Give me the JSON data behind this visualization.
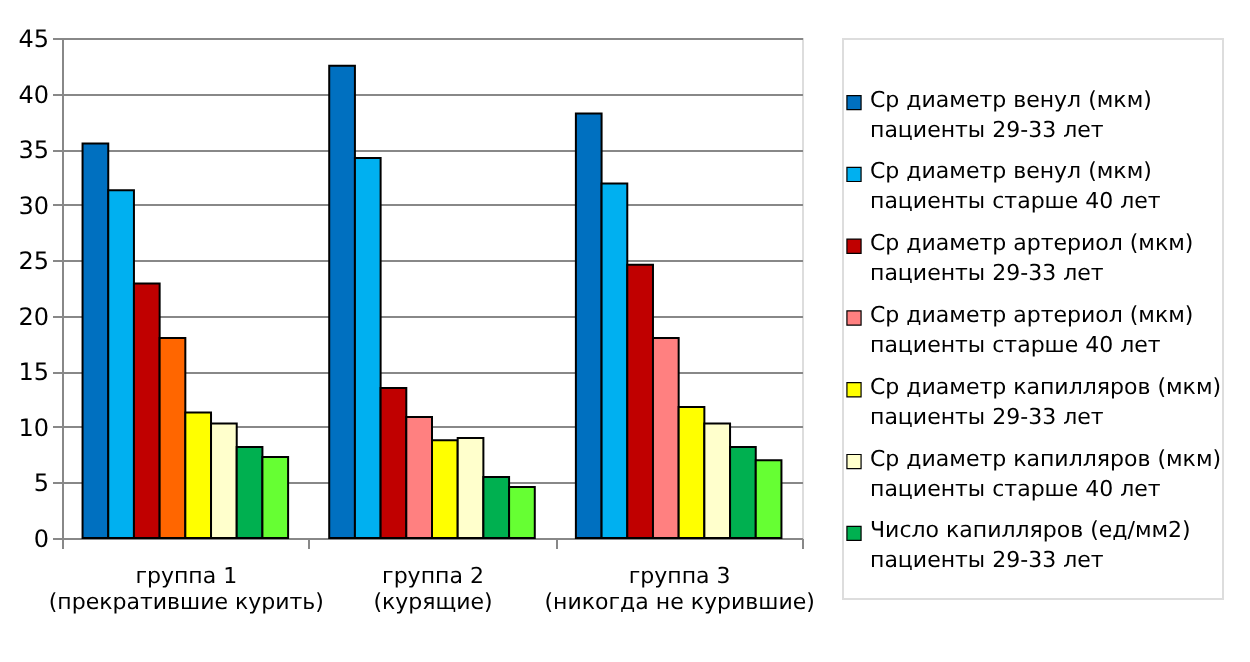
{
  "chart_data": {
    "type": "bar",
    "categories": [
      "группа 1 (прекратившие курить)",
      "группа 2 (курящие)",
      "группа 3 (никогда не курившие)"
    ],
    "series": [
      {
        "name": "Ср диаметр венул (мкм) пациенты 29-33 лет",
        "color": "#0070c0",
        "values": [
          35.5,
          42.5,
          38.2
        ]
      },
      {
        "name": "Ср диаметр венул (мкм) пациенты старше 40 лет",
        "color": "#00b0f0",
        "values": [
          31.3,
          34.2,
          31.9
        ]
      },
      {
        "name": "Ср диаметр артериол (мкм) пациенты 29-33 лет",
        "color": "#c00000",
        "values": [
          22.9,
          13.5,
          24.6
        ]
      },
      {
        "name": "Ср диаметр артериол (мкм) пациенты старше 40 лет",
        "color": "#ff8080",
        "colors": [
          "#ff6600",
          "#ff8080",
          "#ff8080"
        ],
        "values": [
          18.0,
          10.9,
          18.0
        ]
      },
      {
        "name": "Ср диаметр капилляров (мкм) пациенты 29-33 лет",
        "color": "#ffff00",
        "values": [
          11.3,
          8.8,
          11.8
        ]
      },
      {
        "name": "Ср диаметр капилляров (мкм) пациенты старше 40 лет",
        "color": "#ffffcc",
        "values": [
          10.3,
          9.0,
          10.3
        ]
      },
      {
        "name": "Число капилляров (ед/мм2) пациенты 29-33 лет",
        "color": "#00b050",
        "values": [
          8.2,
          5.5,
          8.2
        ]
      },
      {
        "color": "#66ff33",
        "values": [
          7.3,
          4.6,
          7.0
        ]
      }
    ],
    "ylim": [
      0,
      45
    ],
    "yticks": [
      0,
      5,
      10,
      15,
      20,
      25,
      30,
      35,
      40,
      45
    ],
    "grid": "y",
    "legend": "right"
  }
}
